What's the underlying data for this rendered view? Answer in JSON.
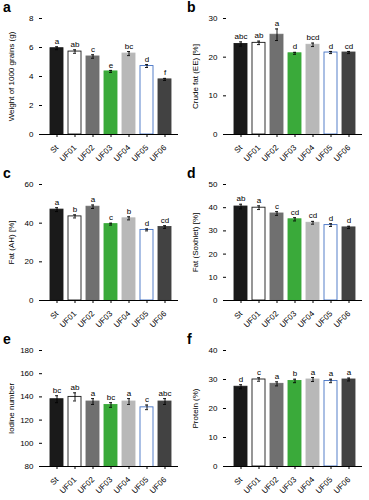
{
  "chart_data": [
    {
      "type": "bar",
      "title": "a",
      "ylabel": "Weight of 1000 grains (g)",
      "categories": [
        "St",
        "UF01",
        "UF02",
        "UF03",
        "UF04",
        "UF05",
        "UF06"
      ],
      "values": [
        5.95,
        5.72,
        5.38,
        4.35,
        5.58,
        4.72,
        3.8
      ],
      "errors": [
        0.1,
        0.12,
        0.12,
        0.07,
        0.14,
        0.1,
        0.07
      ],
      "annotations": [
        "a",
        "ab",
        "c",
        "e",
        "bc",
        "d",
        "f"
      ],
      "colors": [
        "#1a1a1a",
        "#ffffff",
        "#707070",
        "#3aaa3a",
        "#b8b8b8",
        "#ffffff",
        "#424242"
      ],
      "edge_colors": [
        "#1a1a1a",
        "#1a1a1a",
        "#707070",
        "#3aaa3a",
        "#b8b8b8",
        "#4472c4",
        "#424242"
      ],
      "ylim": [
        0,
        8
      ],
      "yticks": [
        0,
        2,
        4,
        6,
        8
      ],
      "grid": false
    },
    {
      "type": "bar",
      "title": "b",
      "ylabel": "Crude fat (EE) [%]",
      "categories": [
        "St",
        "UF01",
        "UF02",
        "UF03",
        "UF04",
        "UF05",
        "UF06"
      ],
      "values": [
        23.4,
        23.7,
        25.8,
        21.0,
        23.2,
        21.2,
        21.2
      ],
      "errors": [
        0.55,
        0.45,
        1.5,
        0.25,
        0.45,
        0.28,
        0.28
      ],
      "annotations": [
        "abc",
        "ab",
        "a",
        "d",
        "bcd",
        "d",
        "cd"
      ],
      "colors": [
        "#1a1a1a",
        "#ffffff",
        "#707070",
        "#3aaa3a",
        "#b8b8b8",
        "#ffffff",
        "#424242"
      ],
      "edge_colors": [
        "#1a1a1a",
        "#1a1a1a",
        "#707070",
        "#3aaa3a",
        "#b8b8b8",
        "#4472c4",
        "#424242"
      ],
      "ylim": [
        0,
        30
      ],
      "yticks": [
        0,
        10,
        20,
        30
      ],
      "grid": false
    },
    {
      "type": "bar",
      "title": "c",
      "ylabel": "Fat (AH) [%]",
      "categories": [
        "St",
        "UF01",
        "UF02",
        "UF03",
        "UF04",
        "UF05",
        "UF06"
      ],
      "values": [
        47.0,
        43.5,
        48.5,
        39.5,
        42.5,
        36.5,
        38.0
      ],
      "errors": [
        1.0,
        0.8,
        0.9,
        0.5,
        0.8,
        0.5,
        0.7
      ],
      "annotations": [
        "a",
        "b",
        "a",
        "c",
        "b",
        "d",
        "cd"
      ],
      "colors": [
        "#1a1a1a",
        "#ffffff",
        "#707070",
        "#3aaa3a",
        "#b8b8b8",
        "#ffffff",
        "#424242"
      ],
      "edge_colors": [
        "#1a1a1a",
        "#1a1a1a",
        "#707070",
        "#3aaa3a",
        "#b8b8b8",
        "#4472c4",
        "#424242"
      ],
      "ylim": [
        0,
        60
      ],
      "yticks": [
        0,
        20,
        40,
        60
      ],
      "grid": false
    },
    {
      "type": "bar",
      "title": "d",
      "ylabel": "Fat (Soxhlet) [%]",
      "categories": [
        "St",
        "UF01",
        "UF02",
        "UF03",
        "UF04",
        "UF05",
        "UF06"
      ],
      "values": [
        40.5,
        40.0,
        37.5,
        35.0,
        33.5,
        32.5,
        31.5
      ],
      "errors": [
        1.0,
        0.8,
        0.8,
        0.7,
        0.6,
        0.6,
        0.5
      ],
      "annotations": [
        "ab",
        "a",
        "c",
        "cd",
        "cd",
        "d",
        "d"
      ],
      "colors": [
        "#1a1a1a",
        "#ffffff",
        "#707070",
        "#3aaa3a",
        "#b8b8b8",
        "#ffffff",
        "#424242"
      ],
      "edge_colors": [
        "#1a1a1a",
        "#1a1a1a",
        "#707070",
        "#3aaa3a",
        "#b8b8b8",
        "#4472c4",
        "#424242"
      ],
      "ylim": [
        0,
        50
      ],
      "yticks": [
        0,
        10,
        20,
        30,
        40,
        50
      ],
      "grid": false
    },
    {
      "type": "bar",
      "title": "e",
      "ylabel": "Iodine number",
      "categories": [
        "St",
        "UF01",
        "UF02",
        "UF03",
        "UF04",
        "UF05",
        "UF06"
      ],
      "values": [
        138,
        140,
        136,
        133,
        136,
        131,
        136
      ],
      "errors": [
        3.0,
        3.5,
        2.5,
        2.0,
        2.5,
        2.0,
        2.5
      ],
      "annotations": [
        "bc",
        "ab",
        "a",
        "bc",
        "a",
        "c",
        "abc"
      ],
      "colors": [
        "#1a1a1a",
        "#ffffff",
        "#707070",
        "#3aaa3a",
        "#b8b8b8",
        "#ffffff",
        "#424242"
      ],
      "edge_colors": [
        "#1a1a1a",
        "#1a1a1a",
        "#707070",
        "#3aaa3a",
        "#b8b8b8",
        "#4472c4",
        "#424242"
      ],
      "ylim": [
        80,
        180
      ],
      "yticks": [
        80,
        100,
        120,
        140,
        160,
        180
      ],
      "grid": false
    },
    {
      "type": "bar",
      "title": "f",
      "ylabel": "Protein (%)",
      "categories": [
        "St",
        "UF01",
        "UF02",
        "UF03",
        "UF04",
        "UF05",
        "UF06"
      ],
      "values": [
        27.5,
        30.0,
        28.5,
        29.5,
        30.0,
        29.5,
        30.0
      ],
      "errors": [
        0.7,
        0.6,
        0.7,
        0.6,
        0.7,
        0.6,
        0.5
      ],
      "annotations": [
        "d",
        "c",
        "a",
        "b",
        "a",
        "a",
        "a"
      ],
      "colors": [
        "#1a1a1a",
        "#ffffff",
        "#707070",
        "#3aaa3a",
        "#b8b8b8",
        "#ffffff",
        "#424242"
      ],
      "edge_colors": [
        "#1a1a1a",
        "#1a1a1a",
        "#707070",
        "#3aaa3a",
        "#b8b8b8",
        "#4472c4",
        "#424242"
      ],
      "ylim": [
        0,
        40
      ],
      "yticks": [
        0,
        10,
        20,
        30,
        40
      ],
      "grid": false
    }
  ]
}
